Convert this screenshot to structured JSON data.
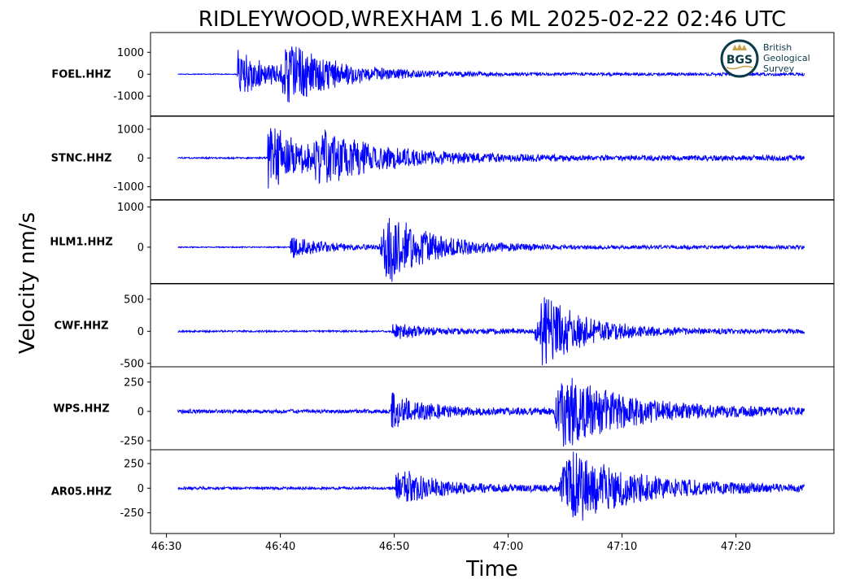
{
  "figure": {
    "title": "RIDLEYWOOD,WREXHAM 1.6 ML   2025-02-22 02:46 UTC",
    "ylabel": "Velocity nm/s",
    "xlabel": "Time",
    "logo": {
      "emblem": "BGS",
      "text_lines": [
        "British",
        "Geological",
        "Survey"
      ],
      "colors": {
        "ring": "#0b3a4a",
        "accent": "#c8a24a",
        "text": "#0b3a4a"
      }
    }
  },
  "chart_data": {
    "type": "line",
    "trace_color": "#0000ff",
    "x_axis": {
      "range": [
        "46:28.6",
        "47:28.6"
      ],
      "ticks": [
        "46:30",
        "46:40",
        "46:50",
        "47:00",
        "47:10",
        "47:20"
      ],
      "data_range": [
        "46:31",
        "47:26"
      ]
    },
    "panels": [
      {
        "station": "FOEL.HHZ",
        "ylim": [
          -1900,
          1900
        ],
        "yticks": [
          {
            "value": 1000,
            "label": "1000"
          },
          {
            "value": 0,
            "label": "0"
          },
          {
            "value": -1000,
            "label": "-1000"
          }
        ],
        "noise_level": 20,
        "p_arrival": "46:36.2",
        "p_amplitude": 1100,
        "s_arrival": "46:39.8",
        "s_amplitude": 1750,
        "coda_level": 150,
        "decay_s": 12
      },
      {
        "station": "STNC.HHZ",
        "ylim": [
          -1450,
          1450
        ],
        "yticks": [
          {
            "value": 1000,
            "label": "1000"
          },
          {
            "value": 0,
            "label": "0"
          },
          {
            "value": -1000,
            "label": "-1000"
          }
        ],
        "noise_level": 30,
        "p_arrival": "46:38.9",
        "p_amplitude": 1400,
        "s_arrival": "46:42.5",
        "s_amplitude": 1100,
        "coda_level": 200,
        "decay_s": 14
      },
      {
        "station": "HLM1.HHZ",
        "ylim": [
          -900,
          1170
        ],
        "yticks": [
          {
            "value": 1000,
            "label": "1000"
          },
          {
            "value": 0,
            "label": "0"
          }
        ],
        "noise_level": 15,
        "p_arrival": "46:40.9",
        "p_amplitude": 250,
        "s_arrival": "46:48.7",
        "s_amplitude": 1100,
        "coda_level": 100,
        "decay_s": 10
      },
      {
        "station": "CWF.HHZ",
        "ylim": [
          -560,
          740
        ],
        "yticks": [
          {
            "value": 500,
            "label": "500"
          },
          {
            "value": 0,
            "label": "0"
          },
          {
            "value": -500,
            "label": "-500"
          }
        ],
        "noise_level": 15,
        "p_arrival": "46:49.8",
        "p_amplitude": 120,
        "s_arrival": "47:02.3",
        "s_amplitude": 650,
        "coda_level": 80,
        "decay_s": 10
      },
      {
        "station": "WPS.HHZ",
        "ylim": [
          -330,
          380
        ],
        "yticks": [
          {
            "value": 250,
            "label": "250"
          },
          {
            "value": 0,
            "label": "0"
          },
          {
            "value": -250,
            "label": "-250"
          }
        ],
        "noise_level": 18,
        "p_arrival": "46:49.7",
        "p_amplitude": 140,
        "s_arrival": "47:04.0",
        "s_amplitude": 340,
        "coda_level": 60,
        "decay_s": 14
      },
      {
        "station": "AR05.HHZ",
        "ylim": [
          -460,
          390
        ],
        "yticks": [
          {
            "value": 250,
            "label": "250"
          },
          {
            "value": 0,
            "label": "0"
          },
          {
            "value": -250,
            "label": "-250"
          }
        ],
        "noise_level": 15,
        "p_arrival": "46:50.1",
        "p_amplitude": 220,
        "s_arrival": "47:04.5",
        "s_amplitude": 420,
        "coda_level": 70,
        "decay_s": 14
      }
    ]
  }
}
